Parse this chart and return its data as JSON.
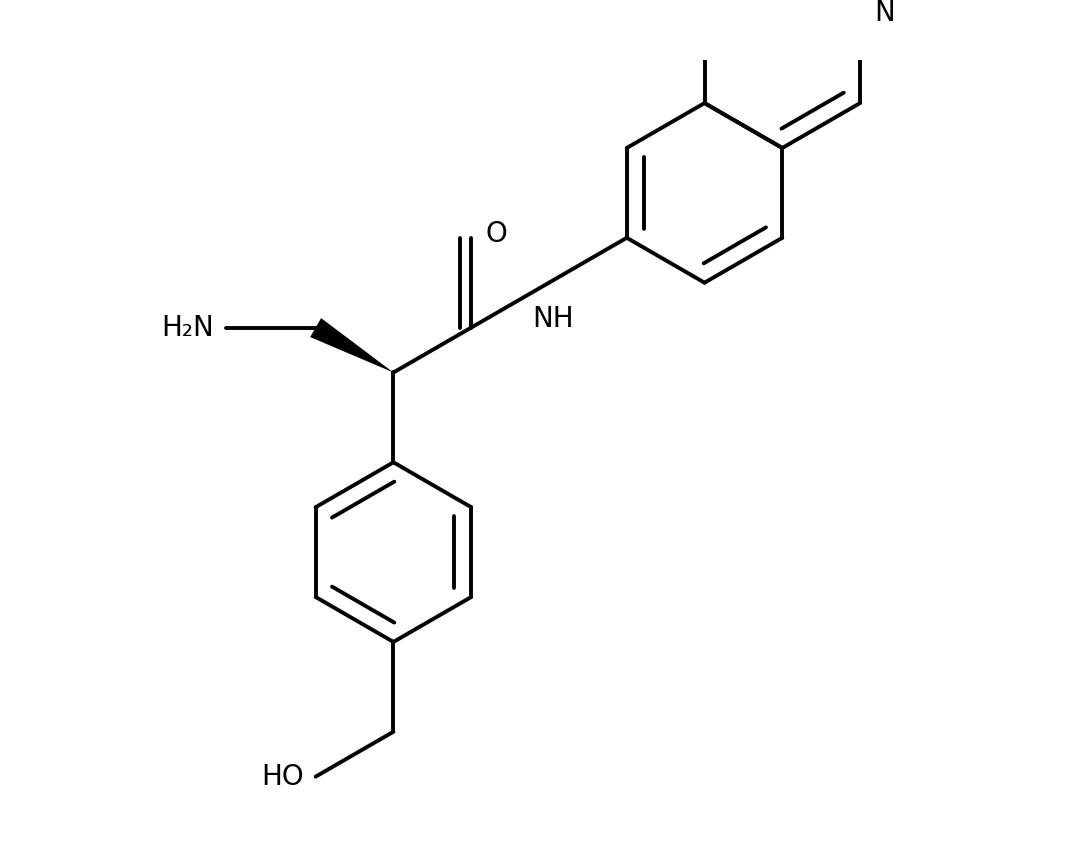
{
  "background_color": "#ffffff",
  "line_color": "#000000",
  "line_width": 2.8,
  "font_size": 20,
  "figsize": [
    10.68,
    8.48
  ],
  "dpi": 100,
  "xlim": [
    -0.5,
    10.5
  ],
  "ylim": [
    -1.0,
    9.0
  ],
  "label_H2N": "H₂N",
  "label_O": "O",
  "label_NH": "NH",
  "label_HO": "HO",
  "label_N": "N"
}
